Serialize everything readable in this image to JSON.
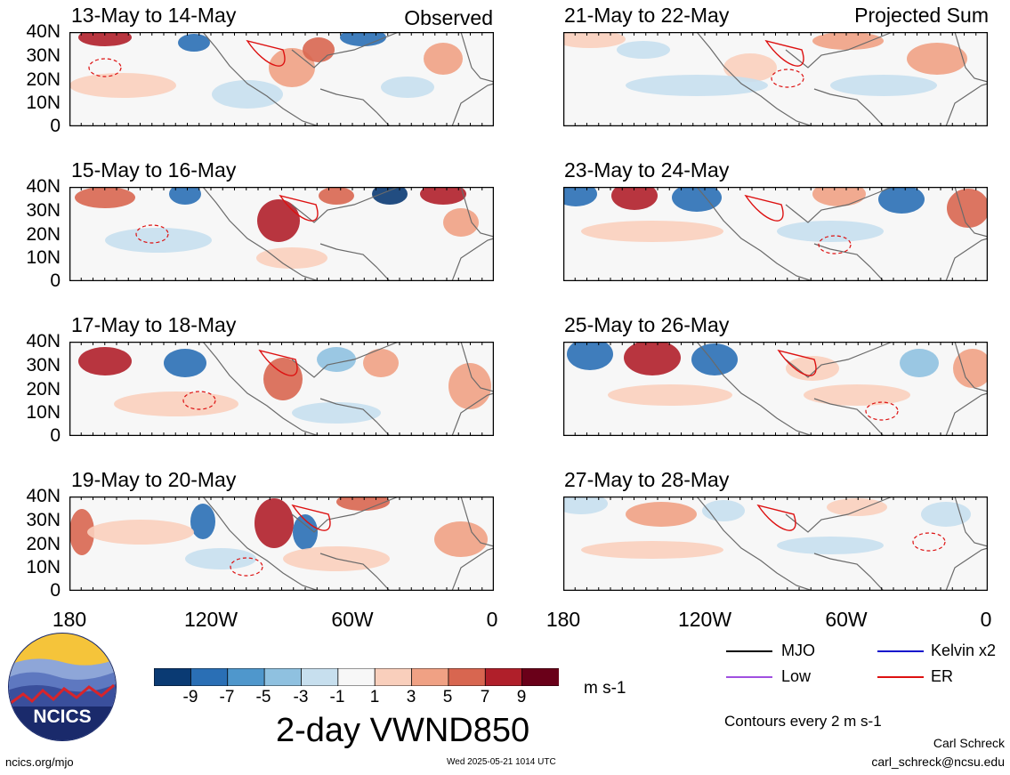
{
  "columns": [
    {
      "label": "Observed"
    },
    {
      "label": "Projected Sum"
    }
  ],
  "panels": [
    {
      "title": "13-May to 14-May"
    },
    {
      "title": "15-May to 16-May"
    },
    {
      "title": "17-May to 18-May"
    },
    {
      "title": "19-May to 20-May"
    },
    {
      "title": "21-May to 22-May"
    },
    {
      "title": "23-May to 24-May"
    },
    {
      "title": "25-May to 26-May"
    },
    {
      "title": "27-May to 28-May"
    }
  ],
  "lat_ticks": [
    "40N",
    "30N",
    "20N",
    "10N",
    "0"
  ],
  "lon_ticks": [
    "180",
    "120W",
    "60W",
    "0"
  ],
  "colorbar": {
    "ticks": [
      "-9",
      "-7",
      "-5",
      "-3",
      "-1",
      "1",
      "3",
      "5",
      "7",
      "9"
    ],
    "colors": [
      "#0a3a73",
      "#2a6fb5",
      "#4f97cc",
      "#8fc1e0",
      "#c7dfee",
      "#f7f7f7",
      "#f9cfbc",
      "#f0a184",
      "#d86650",
      "#b01f2a",
      "#6a0019"
    ],
    "units": "m s-1"
  },
  "main_title": "2-day VWND850",
  "legend": {
    "items": [
      {
        "label": "MJO",
        "color": "#000000"
      },
      {
        "label": "Kelvin x2",
        "color": "#1111cc"
      },
      {
        "label": "Low",
        "color": "#a050e0"
      },
      {
        "label": "ER",
        "color": "#dd1111"
      }
    ],
    "note": "Contours every 2 m s-1"
  },
  "logo": {
    "text": "NCICS"
  },
  "footer": {
    "url": "ncics.org/mjo",
    "timestamp": "Wed 2025-05-21 1014 UTC",
    "author": "Carl Schreck",
    "email": "carl_schreck@ncsu.edu"
  }
}
